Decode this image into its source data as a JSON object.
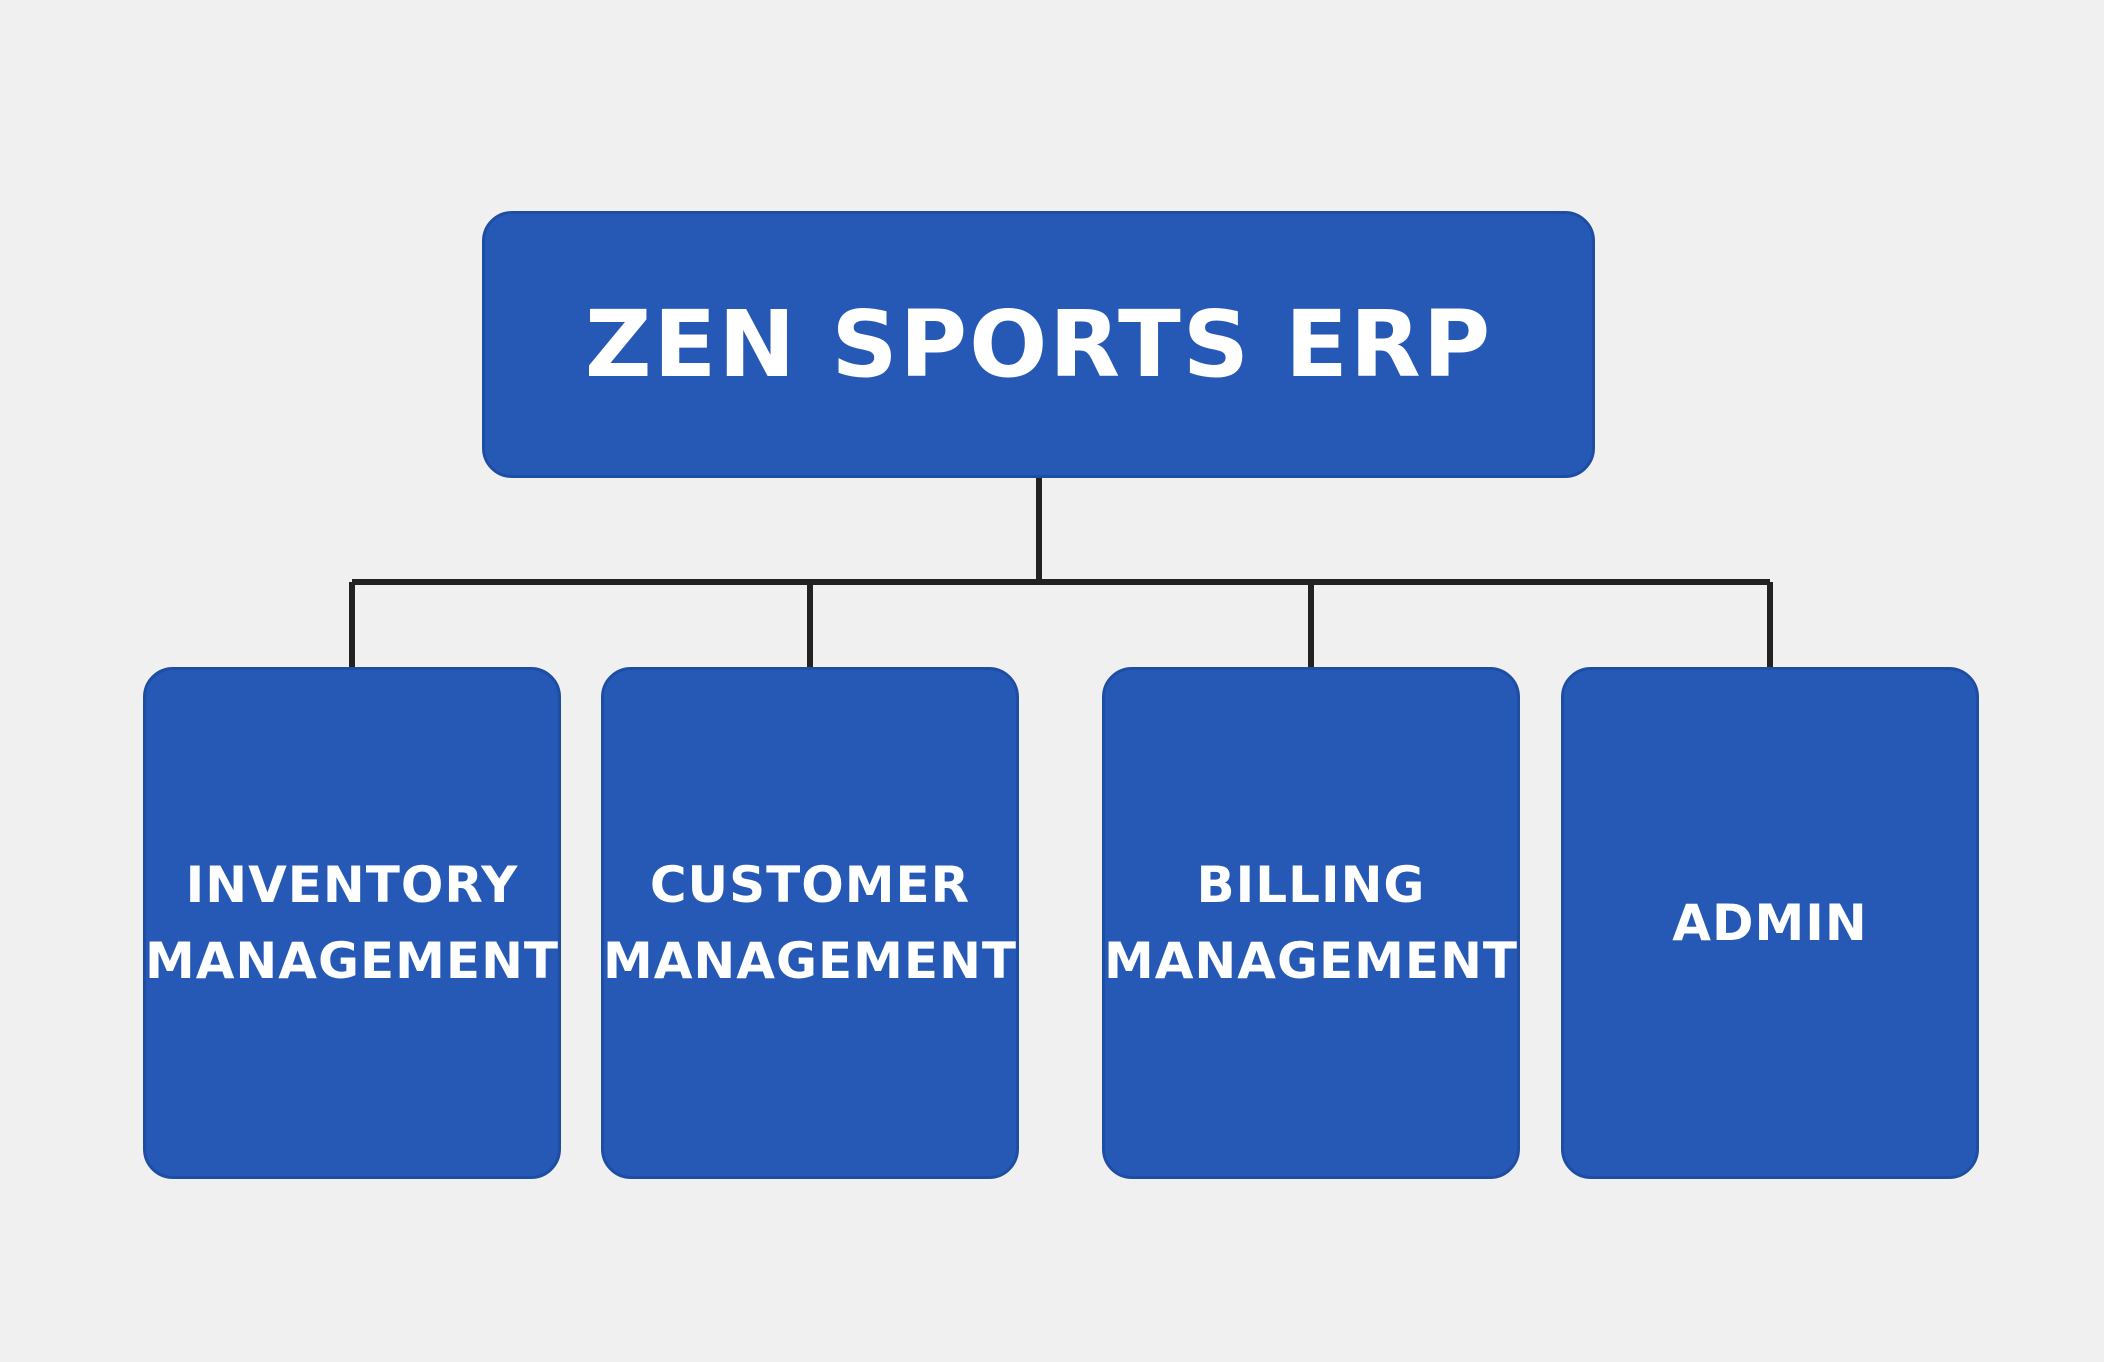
{
  "colors": {
    "background": "#f0f0f0",
    "node_fill": "#2659b5",
    "node_border": "#1d4ea3",
    "node_text": "#ffffff",
    "connector": "#222222"
  },
  "root": {
    "label": "ZEN SPORTS ERP"
  },
  "modules": [
    {
      "line1": "INVENTORY",
      "line2": "MANAGEMENT"
    },
    {
      "line1": "CUSTOMER",
      "line2": "MANAGEMENT"
    },
    {
      "line1": "BILLING",
      "line2": "MANAGEMENT"
    },
    {
      "line1": "ADMIN",
      "line2": ""
    }
  ]
}
